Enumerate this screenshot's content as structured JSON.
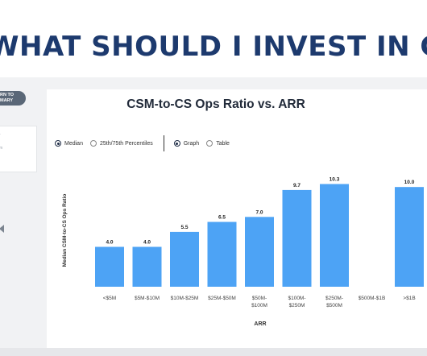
{
  "banner": {
    "title": "WHAT SHOULD I INVEST IN CS O"
  },
  "nav": {
    "return_label": "RN TO MARY"
  },
  "side_panel": {
    "items": [
      "r",
      "m"
    ]
  },
  "controls": {
    "stat_options": [
      {
        "label": "Median",
        "selected": true
      },
      {
        "label": "25th/75th Percentiles",
        "selected": false
      }
    ],
    "view_options": [
      {
        "label": "Graph",
        "selected": true
      },
      {
        "label": "Table",
        "selected": false
      }
    ]
  },
  "chart_data": {
    "type": "bar",
    "title": "CSM-to-CS Ops Ratio vs. ARR",
    "xlabel": "ARR",
    "ylabel": "Median CSM-to-CS Ops Ratio",
    "categories": [
      "<$5M",
      "$5M-$10M",
      "$10M-$25M",
      "$25M-$50M",
      "$50M-\n$100M",
      "$100M-\n$250M",
      "$250M-\n$500M",
      "$500M-$1B",
      ">$1B"
    ],
    "values": [
      4.0,
      4.0,
      5.5,
      6.5,
      7.0,
      9.7,
      10.3,
      null,
      10.0
    ],
    "value_labels": [
      "4.0",
      "4.0",
      "5.5",
      "6.5",
      "7.0",
      "9.7",
      "10.3",
      "",
      "10.0"
    ],
    "ylim": [
      0,
      10.5
    ],
    "grid": false,
    "bar_color": "#4da3f5",
    "colors": {
      "title": "#1d3a6e",
      "text": "#222b3a"
    }
  }
}
